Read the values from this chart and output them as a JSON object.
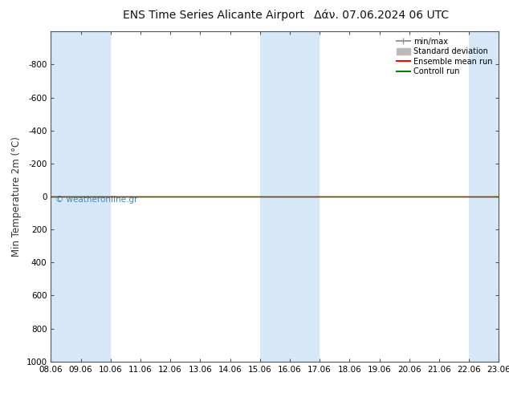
{
  "title_left": "ENS Time Series Alicante Airport",
  "title_right": "Δάν. 07.06.2024 06 UTC",
  "ylabel": "Min Temperature 2m (°C)",
  "watermark": "© weatheronline.gr",
  "bg_color": "#ffffff",
  "plot_bg_color": "#ffffff",
  "band_color": "#d6e8f7",
  "ylim_bottom": 1000,
  "ylim_top": -1000,
  "yticks": [
    -800,
    -600,
    -400,
    -200,
    0,
    200,
    400,
    600,
    800,
    1000
  ],
  "x_start": 8.06,
  "x_end": 23.06,
  "xtick_labels": [
    "08.06",
    "09.06",
    "10.06",
    "11.06",
    "12.06",
    "13.06",
    "14.06",
    "15.06",
    "16.06",
    "17.06",
    "18.06",
    "19.06",
    "20.06",
    "21.06",
    "22.06",
    "23.06"
  ],
  "xtick_positions": [
    8.06,
    9.06,
    10.06,
    11.06,
    12.06,
    13.06,
    14.06,
    15.06,
    16.06,
    17.06,
    18.06,
    19.06,
    20.06,
    21.06,
    22.06,
    23.06
  ],
  "blue_bands": [
    [
      8.06,
      9.06
    ],
    [
      9.06,
      10.06
    ],
    [
      15.06,
      16.06
    ],
    [
      16.06,
      17.06
    ],
    [
      22.06,
      23.06
    ]
  ],
  "control_run_y": 0,
  "control_run_color": "#008000",
  "ensemble_mean_color": "#ff0000",
  "minmax_color": "#999999",
  "stddev_color": "#bbbbbb",
  "legend_labels": [
    "min/max",
    "Standard deviation",
    "Ensemble mean run",
    "Controll run"
  ],
  "legend_colors": [
    "#999999",
    "#bbbbbb",
    "#ff0000",
    "#008000"
  ],
  "title_fontsize": 10,
  "tick_fontsize": 7.5,
  "ylabel_fontsize": 8.5,
  "watermark_color": "#4488cc"
}
